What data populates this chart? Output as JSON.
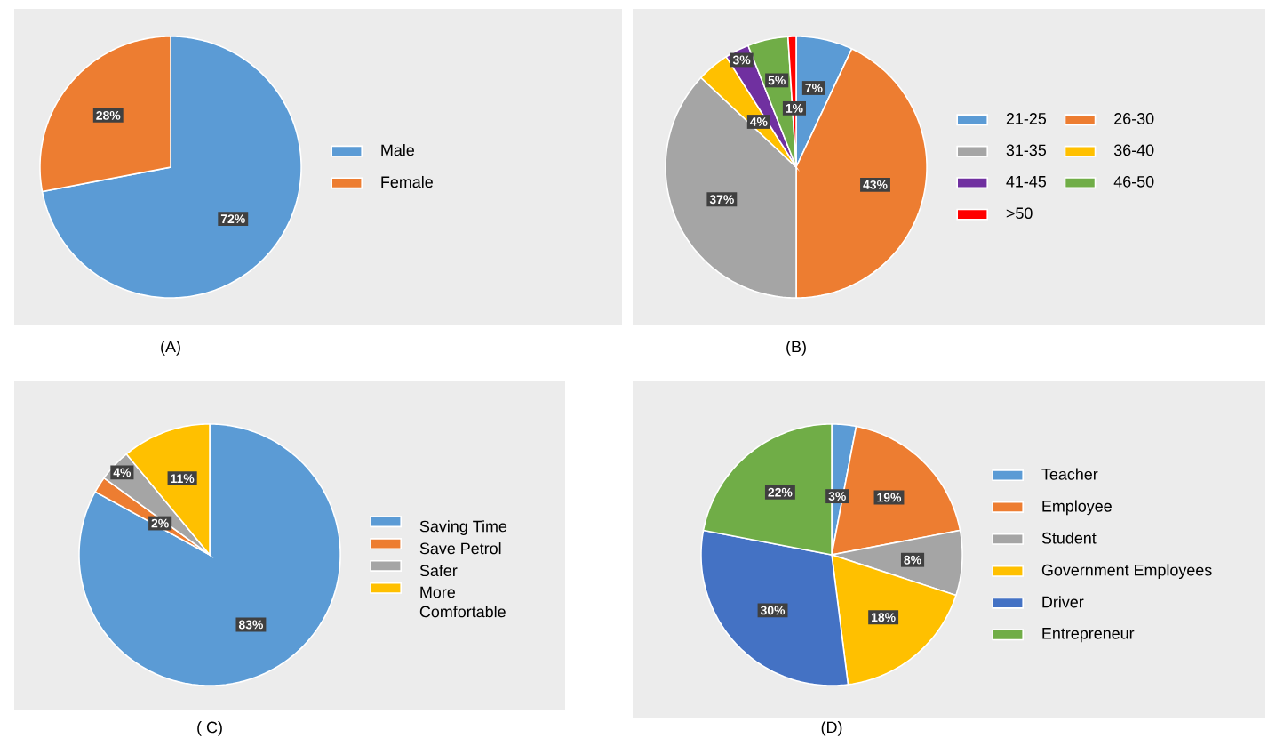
{
  "chart_data": [
    {
      "type": "pie",
      "title": "(A)",
      "legend": "right",
      "categories": [
        "Male",
        "Female"
      ],
      "values": [
        72,
        28
      ],
      "colors": [
        "#5b9bd5",
        "#ed7d31"
      ],
      "value_labels": [
        "72%",
        "28%"
      ]
    },
    {
      "type": "pie",
      "title": "(B)",
      "legend": "right",
      "categories": [
        "21-25",
        "26-30",
        "31-35",
        "36-40",
        "41-45",
        "46-50",
        ">50"
      ],
      "values": [
        7,
        43,
        37,
        4,
        3,
        5,
        1
      ],
      "colors": [
        "#5b9bd5",
        "#ed7d31",
        "#a5a5a5",
        "#ffc000",
        "#7030a0",
        "#70ad47",
        "#ff0000"
      ],
      "value_labels": [
        "7%",
        "43%",
        "37%",
        "4%",
        "3%",
        "5%",
        "1%"
      ]
    },
    {
      "type": "pie",
      "title": "( C)",
      "legend": "right",
      "categories": [
        "Saving Time",
        "Save Petrol",
        "Safer",
        "More Comfortable"
      ],
      "values": [
        83,
        2,
        4,
        11
      ],
      "colors": [
        "#5b9bd5",
        "#ed7d31",
        "#a5a5a5",
        "#ffc000"
      ],
      "value_labels": [
        "83%",
        "2%",
        "4%",
        "11%"
      ]
    },
    {
      "type": "pie",
      "title": "(D)",
      "legend": "right",
      "categories": [
        "Teacher",
        "Employee",
        "Student",
        "Government Employees",
        "Driver",
        "Entrepreneur"
      ],
      "values": [
        3,
        19,
        8,
        18,
        30,
        22
      ],
      "colors": [
        "#5b9bd5",
        "#ed7d31",
        "#a5a5a5",
        "#ffc000",
        "#4472c4",
        "#70ad47"
      ],
      "value_labels": [
        "3%",
        "19%",
        "8%",
        "18%",
        "30%",
        "22%"
      ]
    }
  ]
}
